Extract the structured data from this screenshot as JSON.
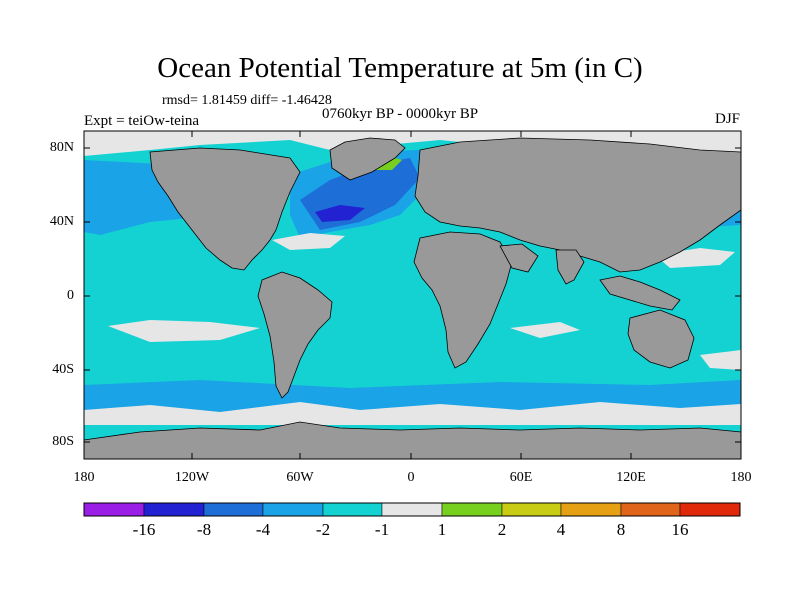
{
  "title": "Ocean Potential Temperature at 5m (in C)",
  "stats": "rmsd= 1.81459 diff= -1.46428",
  "period": "0760kyr BP - 0000kyr BP",
  "experiment": "Expt = teiOw-teina",
  "season": "DJF",
  "lat_labels": [
    "80N",
    "40N",
    "0",
    "40S",
    "80S"
  ],
  "lon_labels": [
    "180",
    "120W",
    "60W",
    "0",
    "60E",
    "120E",
    "180"
  ],
  "colorbar": {
    "labels": [
      "-16",
      "-8",
      "-4",
      "-2",
      "-1",
      "1",
      "2",
      "4",
      "8",
      "16"
    ],
    "colors": [
      "#9a1ee6",
      "#2222d2",
      "#1e6ed8",
      "#1aa3e6",
      "#14d2d2",
      "#e6e6e6",
      "#78d01e",
      "#c8cc14",
      "#e6a014",
      "#e0641a",
      "#e0280a"
    ]
  },
  "map_colors": {
    "land": "#999999",
    "ocean_default": "#14d2d2",
    "neutral": "#e6e6e6",
    "cool": "#1aa3e6",
    "colder": "#1e6ed8",
    "coldest": "#2222d2",
    "warm": "#78d01e",
    "coast": "#000000"
  }
}
